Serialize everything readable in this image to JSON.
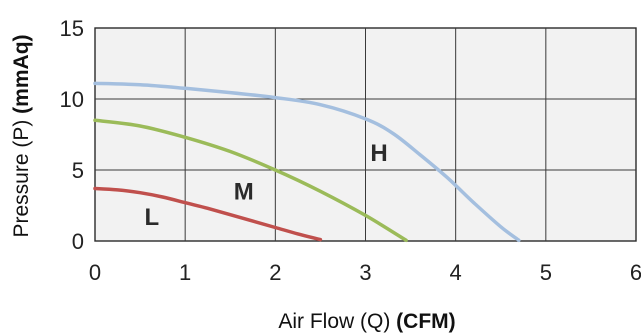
{
  "chart_data": {
    "type": "line",
    "title": "",
    "xlabel": "Air Flow (Q) ",
    "xlabel_unit": "(CFM)",
    "ylabel": "Pressure (P) ",
    "ylabel_unit": "(mmAq)",
    "xlim": [
      0,
      6
    ],
    "ylim": [
      0,
      15
    ],
    "x_ticks": [
      "0",
      "1",
      "2",
      "3",
      "4",
      "5",
      "6"
    ],
    "y_ticks": [
      "0",
      "5",
      "10",
      "15"
    ],
    "grid": true,
    "series": [
      {
        "name": "L",
        "color": "#c0504d",
        "x": [
          0,
          0.25,
          0.5,
          0.75,
          1.0,
          1.25,
          1.5,
          1.75,
          2.0,
          2.25,
          2.5
        ],
        "y": [
          3.7,
          3.6,
          3.4,
          3.1,
          2.7,
          2.3,
          1.85,
          1.4,
          0.95,
          0.5,
          0.1
        ]
      },
      {
        "name": "M",
        "color": "#9bbb59",
        "x": [
          0,
          0.5,
          1.0,
          1.5,
          2.0,
          2.5,
          3.0,
          3.45
        ],
        "y": [
          8.5,
          8.1,
          7.3,
          6.3,
          5.0,
          3.5,
          1.8,
          0.05
        ]
      },
      {
        "name": "H",
        "color": "#a4bfdf",
        "x": [
          0,
          0.5,
          1.0,
          1.5,
          2.0,
          2.5,
          3.0,
          3.3,
          3.6,
          3.9,
          4.2,
          4.5,
          4.7
        ],
        "y": [
          11.1,
          11.0,
          10.75,
          10.45,
          10.1,
          9.6,
          8.6,
          7.6,
          6.1,
          4.5,
          2.7,
          1.0,
          0.05
        ]
      }
    ],
    "curve_labels": [
      {
        "text": "L",
        "x": 0.63,
        "y": 1.7
      },
      {
        "text": "M",
        "x": 1.65,
        "y": 3.5
      },
      {
        "text": "H",
        "x": 3.15,
        "y": 6.2
      }
    ]
  }
}
